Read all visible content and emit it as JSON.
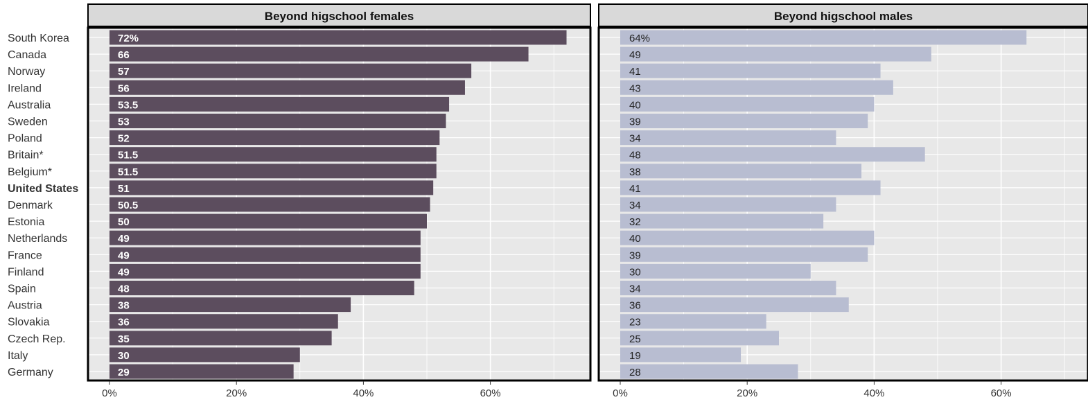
{
  "chart_data": {
    "type": "bar",
    "orientation": "horizontal",
    "categories": [
      "South Korea",
      "Canada",
      "Norway",
      "Ireland",
      "Australia",
      "Sweden",
      "Poland",
      "Britain*",
      "Belgium*",
      "United States",
      "Denmark",
      "Estonia",
      "Netherlands",
      "France",
      "Finland",
      "Spain",
      "Austria",
      "Slovakia",
      "Czech Rep.",
      "Italy",
      "Germany"
    ],
    "highlight_category": "United States",
    "series": [
      {
        "name": "Beyond higschool females",
        "values": [
          72,
          66,
          57,
          56,
          53.5,
          53,
          52,
          51.5,
          51.5,
          51,
          50.5,
          50,
          49,
          49,
          49,
          48,
          38,
          36,
          35,
          30,
          29
        ],
        "labels": [
          "72%",
          "66",
          "57",
          "56",
          "53.5",
          "53",
          "52",
          "51.5",
          "51.5",
          "51",
          "50.5",
          "50",
          "49",
          "49",
          "49",
          "48",
          "38",
          "36",
          "35",
          "30",
          "29"
        ],
        "color": "#5c4d5e",
        "label_color": "#ffffff",
        "label_bold": true
      },
      {
        "name": "Beyond higschool males",
        "values": [
          64,
          49,
          41,
          43,
          40,
          39,
          34,
          48,
          38,
          41,
          34,
          32,
          40,
          39,
          30,
          34,
          36,
          23,
          25,
          19,
          28
        ],
        "labels": [
          "64%",
          "49",
          "41",
          "43",
          "40",
          "39",
          "34",
          "48",
          "38",
          "41",
          "34",
          "32",
          "40",
          "39",
          "30",
          "34",
          "36",
          "23",
          "25",
          "19",
          "28"
        ],
        "color": "#b8bdd1",
        "label_color": "#222222",
        "label_bold": false
      }
    ],
    "xlim": [
      0,
      75
    ],
    "xticks": [
      0,
      20,
      40,
      60
    ],
    "xtick_labels": [
      "0%",
      "20%",
      "40%",
      "60%"
    ],
    "grid": true,
    "colors": {
      "panel_bg": "#e8e8e8",
      "strip_bg": "#d9d9d9",
      "grid": "#ffffff",
      "frame": "#000000",
      "text": "#333333"
    }
  }
}
